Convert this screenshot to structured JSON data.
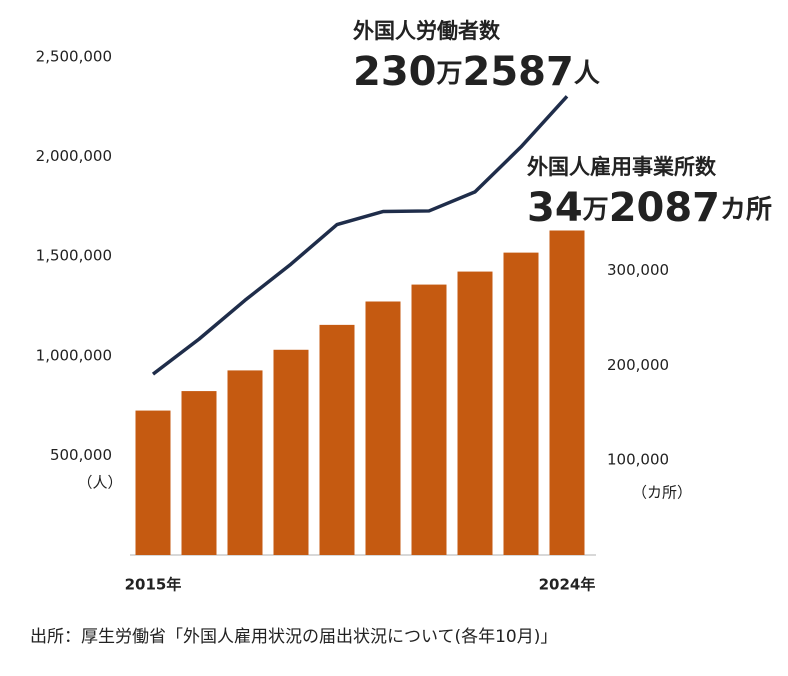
{
  "chart_data": {
    "type": "bar",
    "categories": [
      "2015年",
      null,
      null,
      null,
      null,
      null,
      null,
      null,
      null,
      "2024年"
    ],
    "series": [
      {
        "name": "外国人雇用事業所数",
        "type": "bar",
        "axis": "y2",
        "color": "#c55a11",
        "values": [
          152261,
          172798,
          194595,
          216348,
          242608,
          267243,
          285080,
          298790,
          318775,
          342087
        ],
        "annotation": [
          "34",
          "万",
          "2087",
          "カ所"
        ]
      },
      {
        "name": "外国人労働者数",
        "type": "line",
        "color": "#1f2d4a",
        "values": [
          907896,
          1083769,
          1278670,
          1460463,
          1658804,
          1724328,
          1727221,
          1822725,
          2048675,
          2302587
        ],
        "annotation": [
          "230",
          "万",
          "2587",
          "人"
        ]
      }
    ],
    "ylim": [
      0,
      2500000
    ],
    "yticks": [
      {
        "value": 500000,
        "label": "500,000"
      },
      {
        "value": 1000000,
        "label": "1,000,000"
      },
      {
        "value": 1500000,
        "label": "1,500,000"
      },
      {
        "value": 2000000,
        "label": "2,000,000"
      },
      {
        "value": 2500000,
        "label": "2,500,000"
      }
    ],
    "ylabel": "（人）",
    "y2lim": [
      0,
      525000
    ],
    "y2ticks": [
      {
        "value": 100000,
        "label": "100,000"
      },
      {
        "value": 200000,
        "label": "200,000"
      },
      {
        "value": 300000,
        "label": "300,000"
      }
    ],
    "y2label": "（カ所）",
    "source": "出所：厚生労働省「外国人雇用状況の届出状況について(各年10月)」"
  }
}
